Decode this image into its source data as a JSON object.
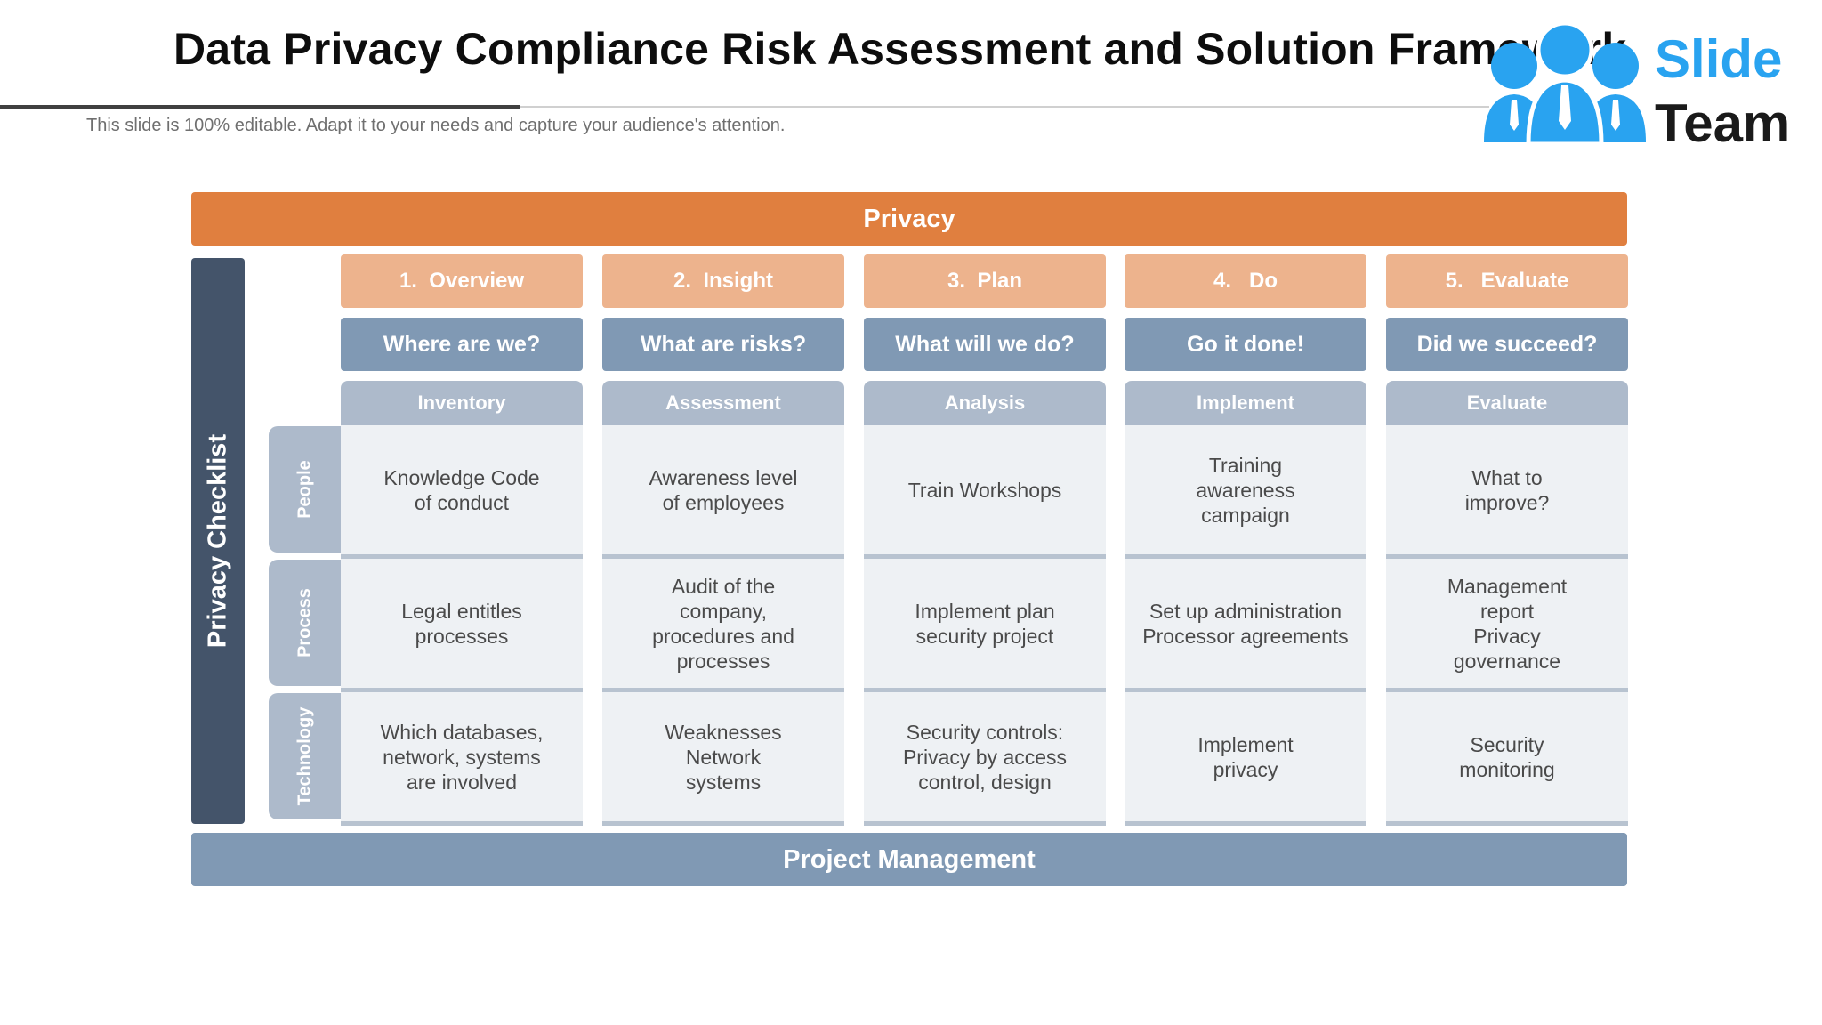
{
  "title": "Data Privacy Compliance Risk Assessment and Solution Framework",
  "subtitle": "This slide is 100% editable. Adapt it to your needs and capture your audience's attention.",
  "logo": {
    "line1": "Slide",
    "line2": "Team",
    "icon": "people-icon",
    "accent": "#29a3f0"
  },
  "top_band": "Privacy",
  "bottom_band": "Project Management",
  "side_label": "Privacy Checklist",
  "rows": [
    "People",
    "Process",
    "Technology"
  ],
  "columns": [
    {
      "step": "1.  Overview",
      "question": "Where are we?",
      "phase": "Inventory",
      "cells": [
        "Knowledge Code\nof conduct",
        "Legal entitles\nprocesses",
        "Which databases,\nnetwork, systems\nare involved"
      ]
    },
    {
      "step": "2.  Insight",
      "question": "What are risks?",
      "phase": "Assessment",
      "cells": [
        "Awareness level\nof employees",
        "Audit of the\ncompany,\nprocedures and\nprocesses",
        "Weaknesses\nNetwork\nsystems"
      ]
    },
    {
      "step": "3.  Plan",
      "question": "What will we do?",
      "phase": "Analysis",
      "cells": [
        "Train Workshops",
        "Implement plan\nsecurity project",
        "Security controls:\nPrivacy by access\ncontrol, design"
      ]
    },
    {
      "step": "4.   Do",
      "question": "Go it done!",
      "phase": "Implement",
      "cells": [
        "Training\nawareness\ncampaign",
        "Set up administration\nProcessor agreements",
        "Implement\nprivacy"
      ]
    },
    {
      "step": "5.   Evaluate",
      "question": "Did we succeed?",
      "phase": "Evaluate",
      "cells": [
        "What to\nimprove?",
        "Management\nreport\nPrivacy\ngovernance",
        "Security\nmonitoring"
      ]
    }
  ],
  "colors": {
    "orange": "#e07f3f",
    "light_orange": "#edb38d",
    "steel_blue": "#8099b4",
    "slate": "#44546a",
    "grey_blue": "#adbacb"
  }
}
